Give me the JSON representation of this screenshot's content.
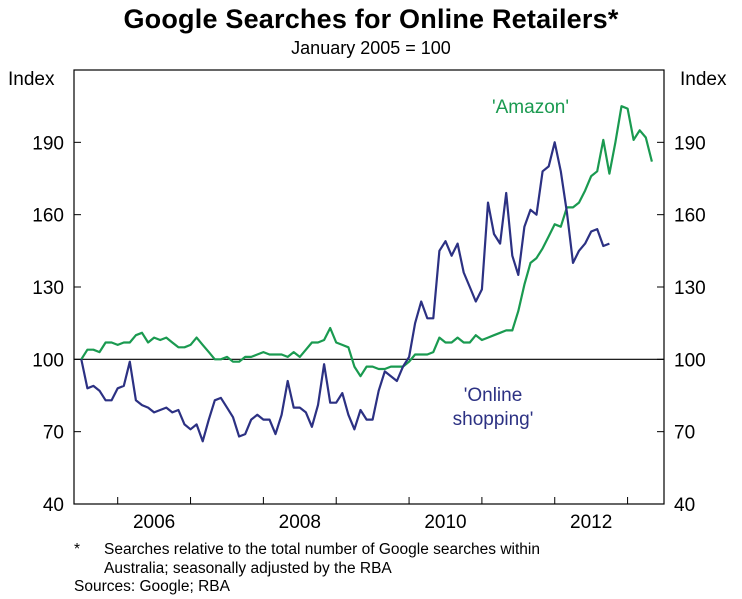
{
  "chart_data": {
    "type": "line",
    "title": "Google Searches for Online Retailers*",
    "subtitle": "January 2005 = 100",
    "ylabel_left": "Index",
    "ylabel_right": "Index",
    "xlim": [
      2004.9,
      2013.0
    ],
    "ylim": [
      40,
      220
    ],
    "yticks": [
      40,
      70,
      100,
      130,
      160,
      190
    ],
    "xticks": [
      2006,
      2008,
      2010,
      2012
    ],
    "xtick_labels": [
      "2006",
      "2008",
      "2010",
      "2012"
    ],
    "reference_line": 100,
    "grid": false,
    "x_start": 2005.0,
    "x_step": 0.0833333,
    "series": [
      {
        "name": "'Amazon'",
        "color": "#1a9a50",
        "values": [
          100,
          104,
          104,
          103,
          107,
          107,
          106,
          107,
          107,
          110,
          111,
          107,
          109,
          108,
          109,
          107,
          105,
          105,
          106,
          109,
          106,
          103,
          100,
          100,
          101,
          99,
          99,
          101,
          101,
          102,
          103,
          102,
          102,
          102,
          101,
          103,
          101,
          104,
          107,
          107,
          108,
          113,
          107,
          106,
          105,
          97,
          93,
          97,
          97,
          96,
          96,
          97,
          97,
          97,
          99,
          102,
          102,
          102,
          103,
          109,
          107,
          107,
          109,
          107,
          107,
          110,
          108,
          109,
          110,
          111,
          112,
          112,
          120,
          131,
          140,
          142,
          146,
          151,
          156,
          155,
          163,
          163,
          165,
          170,
          176,
          178,
          191,
          177,
          190,
          205,
          204,
          191,
          195,
          192,
          182
        ]
      },
      {
        "name": "'Online shopping'",
        "color": "#2c3183",
        "values": [
          100,
          88,
          89,
          87,
          83,
          83,
          88,
          89,
          99,
          83,
          81,
          80,
          78,
          79,
          80,
          78,
          79,
          73,
          71,
          73,
          66,
          75,
          83,
          84,
          80,
          76,
          68,
          69,
          75,
          77,
          75,
          75,
          69,
          77,
          91,
          80,
          80,
          78,
          72,
          81,
          98,
          82,
          82,
          86,
          77,
          71,
          79,
          75,
          75,
          87,
          95,
          93,
          91,
          97,
          101,
          115,
          124,
          117,
          117,
          145,
          149,
          143,
          148,
          136,
          130,
          124,
          129,
          165,
          152,
          148,
          169,
          143,
          135,
          155,
          162,
          160,
          178,
          180,
          190,
          178,
          161,
          140,
          145,
          148,
          153,
          154,
          147,
          148
        ]
      }
    ],
    "annotations": {
      "amazon_label": "'Amazon'",
      "online_line1": "'Online",
      "online_line2": "shopping'"
    }
  },
  "footnote": {
    "mark": "*",
    "line1": "Searches relative to the total number of Google searches within",
    "line2": "Australia; seasonally adjusted by the RBA"
  },
  "sources": "Sources: Google; RBA"
}
